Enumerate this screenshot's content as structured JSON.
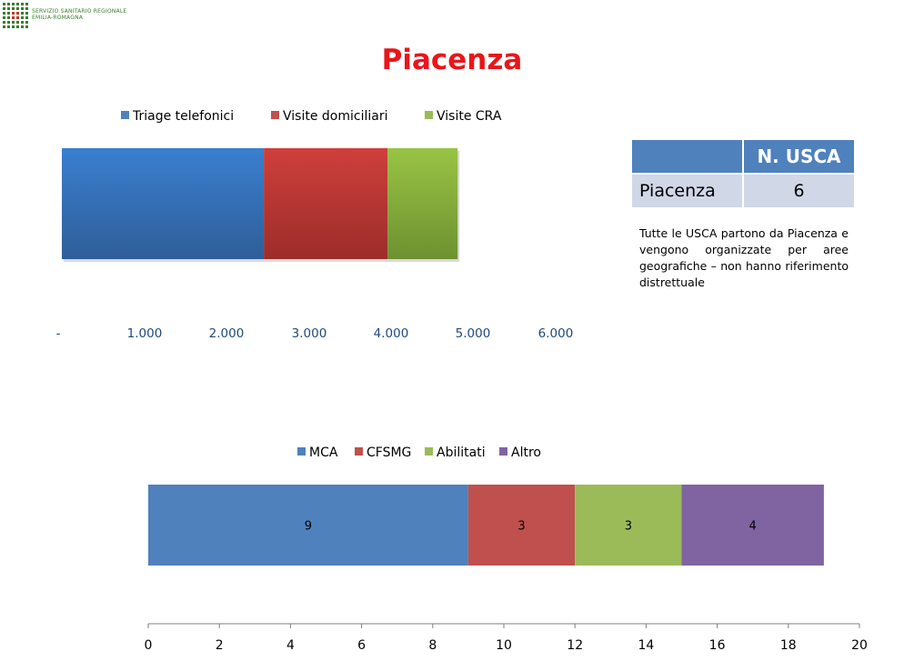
{
  "header": {
    "org_line1": "SERVIZIO SANITARIO REGIONALE",
    "org_line2": "EMILIA-ROMAGNA"
  },
  "page": {
    "title": "Piacenza"
  },
  "table": {
    "header_value": "N.  USCA",
    "row_label": "Piacenza",
    "row_value": "6"
  },
  "note": "Tutte le USCA partono da Piacenza e vengono organizzate per aree geografiche – non hanno riferimento distrettuale",
  "colors": {
    "blue": "#4f81bd",
    "red": "#c0504d",
    "green": "#9bbb59",
    "purple": "#8064a2",
    "title_red": "#e8161b",
    "axis_blue": "#1f497d"
  },
  "chart_data": [
    {
      "type": "bar",
      "orientation": "horizontal",
      "stacked": true,
      "legend": "top",
      "series": [
        {
          "name": "Triage telefonici",
          "values": [
            2450
          ]
        },
        {
          "name": "Visite domiciliari",
          "values": [
            1500
          ]
        },
        {
          "name": "Visite CRA",
          "values": [
            850
          ]
        }
      ],
      "xlim": [
        0,
        6000
      ],
      "xticks": [
        "-",
        "1.000",
        "2.000",
        "3.000",
        "4.000",
        "5.000",
        "6.000"
      ],
      "grid": false
    },
    {
      "type": "bar",
      "orientation": "horizontal",
      "stacked": true,
      "legend": "top",
      "series": [
        {
          "name": "MCA",
          "values": [
            9
          ]
        },
        {
          "name": "CFSMG",
          "values": [
            3
          ]
        },
        {
          "name": "Abilitati",
          "values": [
            3
          ]
        },
        {
          "name": "Altro",
          "values": [
            4
          ]
        }
      ],
      "data_labels": [
        "9",
        "3",
        "3",
        "4"
      ],
      "xlim": [
        0,
        20
      ],
      "xticks": [
        "0",
        "2",
        "4",
        "6",
        "8",
        "10",
        "12",
        "14",
        "16",
        "18",
        "20"
      ],
      "grid": false
    }
  ]
}
